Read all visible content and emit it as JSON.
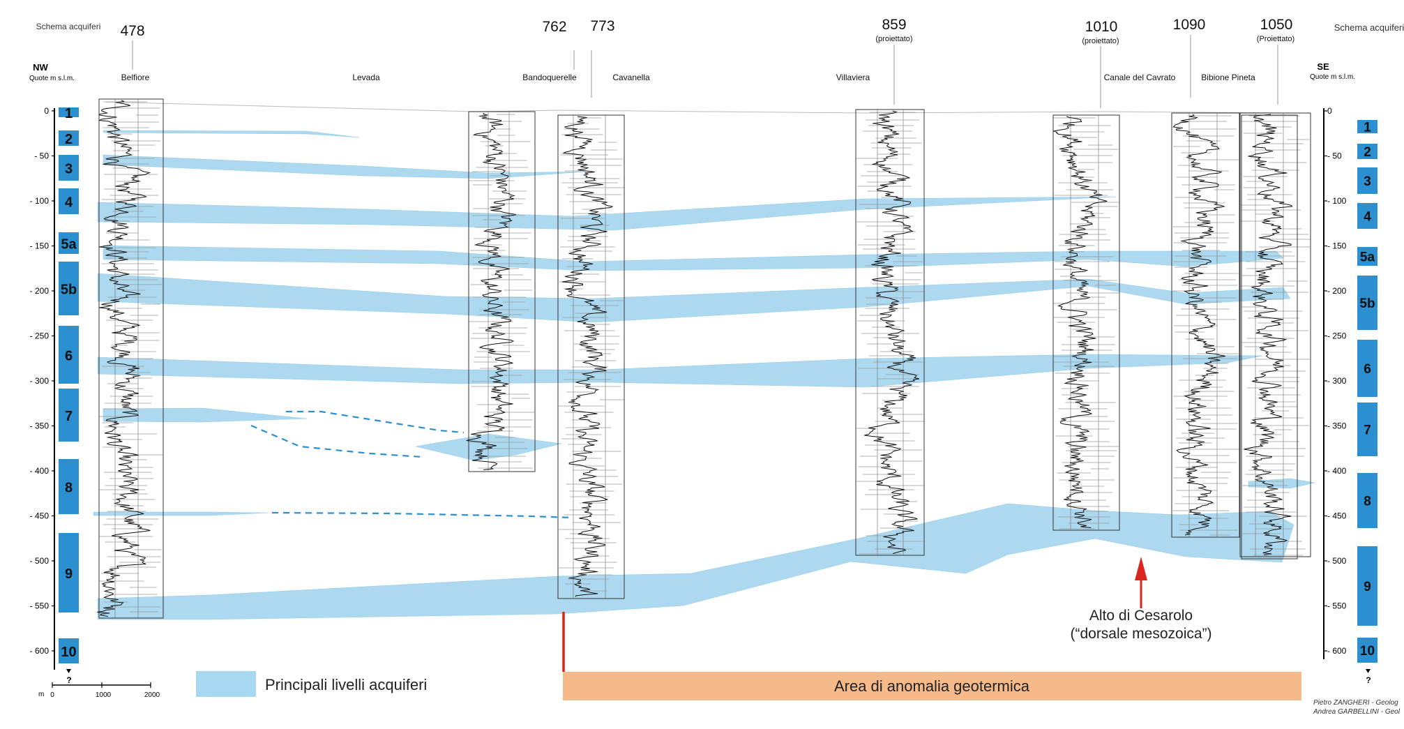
{
  "schema_label": "Schema acquiferi",
  "left_axis": {
    "direction": "NW",
    "unit_label": "Quote m s.l.m.",
    "ticks": [
      "0",
      "- 50",
      "- 100",
      "- 150",
      "- 200",
      "- 250",
      "- 300",
      "- 350",
      "- 400",
      "- 450",
      "- 500",
      "- 550",
      "- 600"
    ],
    "question_mark": "?"
  },
  "right_axis": {
    "direction": "SE",
    "unit_label": "Quote m s.l.m.",
    "ticks": [
      "0",
      "- 50",
      "- 100",
      "- 150",
      "- 200",
      "- 250",
      "- 300",
      "- 350",
      "- 400",
      "- 450",
      "- 500",
      "- 550",
      "- 600"
    ],
    "question_mark": "?"
  },
  "aquifers": [
    "1",
    "2",
    "3",
    "4",
    "5a",
    "5b",
    "6",
    "7",
    "8",
    "9",
    "10"
  ],
  "wells": [
    {
      "id": "478",
      "note": "",
      "locality": "Belfiore"
    },
    {
      "id": "",
      "note": "",
      "locality": "Levada"
    },
    {
      "id": "762",
      "note": "",
      "locality": "Bandoquerelle"
    },
    {
      "id": "773",
      "note": "",
      "locality": "Cavanella"
    },
    {
      "id": "859",
      "note": "(proiettato)",
      "locality": "Villaviera"
    },
    {
      "id": "1010",
      "note": "(proiettato)",
      "locality": "Canale del Cavrato"
    },
    {
      "id": "1090",
      "note": "",
      "locality": "Bibione Pineta"
    },
    {
      "id": "1050",
      "note": "(Proiettato)",
      "locality": ""
    }
  ],
  "resistivity_scale": {
    "unit": "m",
    "ticks": [
      "0",
      "1000",
      "2000"
    ]
  },
  "legend": {
    "aquifer_label": "Principali livelli acquiferi"
  },
  "geothermal_area": {
    "label": "Area di anomalia geotermica",
    "color": "#f6b98a"
  },
  "high_annotation": {
    "line1": "Alto di Cesarolo",
    "line2": "(“dorsale mesozoica”)"
  },
  "credits": {
    "line1": "Pietro ZANGHERI - Geolog",
    "line2": "Andrea GARBELLINI - Geol"
  },
  "colors": {
    "aquifer_fill": "#a8d8f0",
    "schema_box": "#2b8fd0",
    "red_marker": "#d8261f"
  }
}
